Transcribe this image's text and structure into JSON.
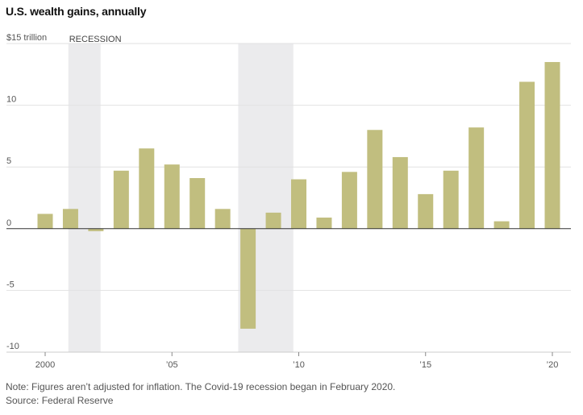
{
  "chart_data": {
    "type": "bar",
    "title": "U.S. wealth gains, annually",
    "unit_label": "$15 trillion",
    "x": [
      2000,
      2001,
      2002,
      2003,
      2004,
      2005,
      2006,
      2007,
      2008,
      2009,
      2010,
      2011,
      2012,
      2013,
      2014,
      2015,
      2016,
      2017,
      2018,
      2019,
      2020
    ],
    "values": [
      1.2,
      1.6,
      -0.2,
      4.7,
      6.5,
      5.2,
      4.1,
      1.6,
      -8.1,
      1.3,
      4.0,
      0.9,
      4.6,
      8.0,
      5.8,
      2.8,
      4.7,
      8.2,
      0.6,
      11.9,
      13.5
    ],
    "ylim": [
      -10,
      15
    ],
    "yticks": [
      {
        "value": 15,
        "label": "$15 trillion"
      },
      {
        "value": 10,
        "label": "10"
      },
      {
        "value": 5,
        "label": "5"
      },
      {
        "value": 0,
        "label": "0"
      },
      {
        "value": -5,
        "label": "-5"
      },
      {
        "value": -10,
        "label": "-10"
      }
    ],
    "xticks": [
      {
        "value": 2000,
        "label": "2000"
      },
      {
        "value": 2005,
        "label": "’05"
      },
      {
        "value": 2010,
        "label": "’10"
      },
      {
        "value": 2015,
        "label": "’15"
      },
      {
        "value": 2020,
        "label": "’20"
      }
    ],
    "recessions": [
      {
        "start": 2001.2,
        "end": 2001.9
      },
      {
        "start": 2007.9,
        "end": 2009.5
      }
    ],
    "recession_label": "RECESSION",
    "grid": true,
    "colors": {
      "bar": "#c1be7f",
      "recession": "#ebebed",
      "grid": "#e2e2e2",
      "zero_line": "#333333"
    }
  },
  "note": "Note: Figures aren’t adjusted for inflation. The Covid-19 recession began in February 2020.",
  "source": "Source: Federal Reserve"
}
